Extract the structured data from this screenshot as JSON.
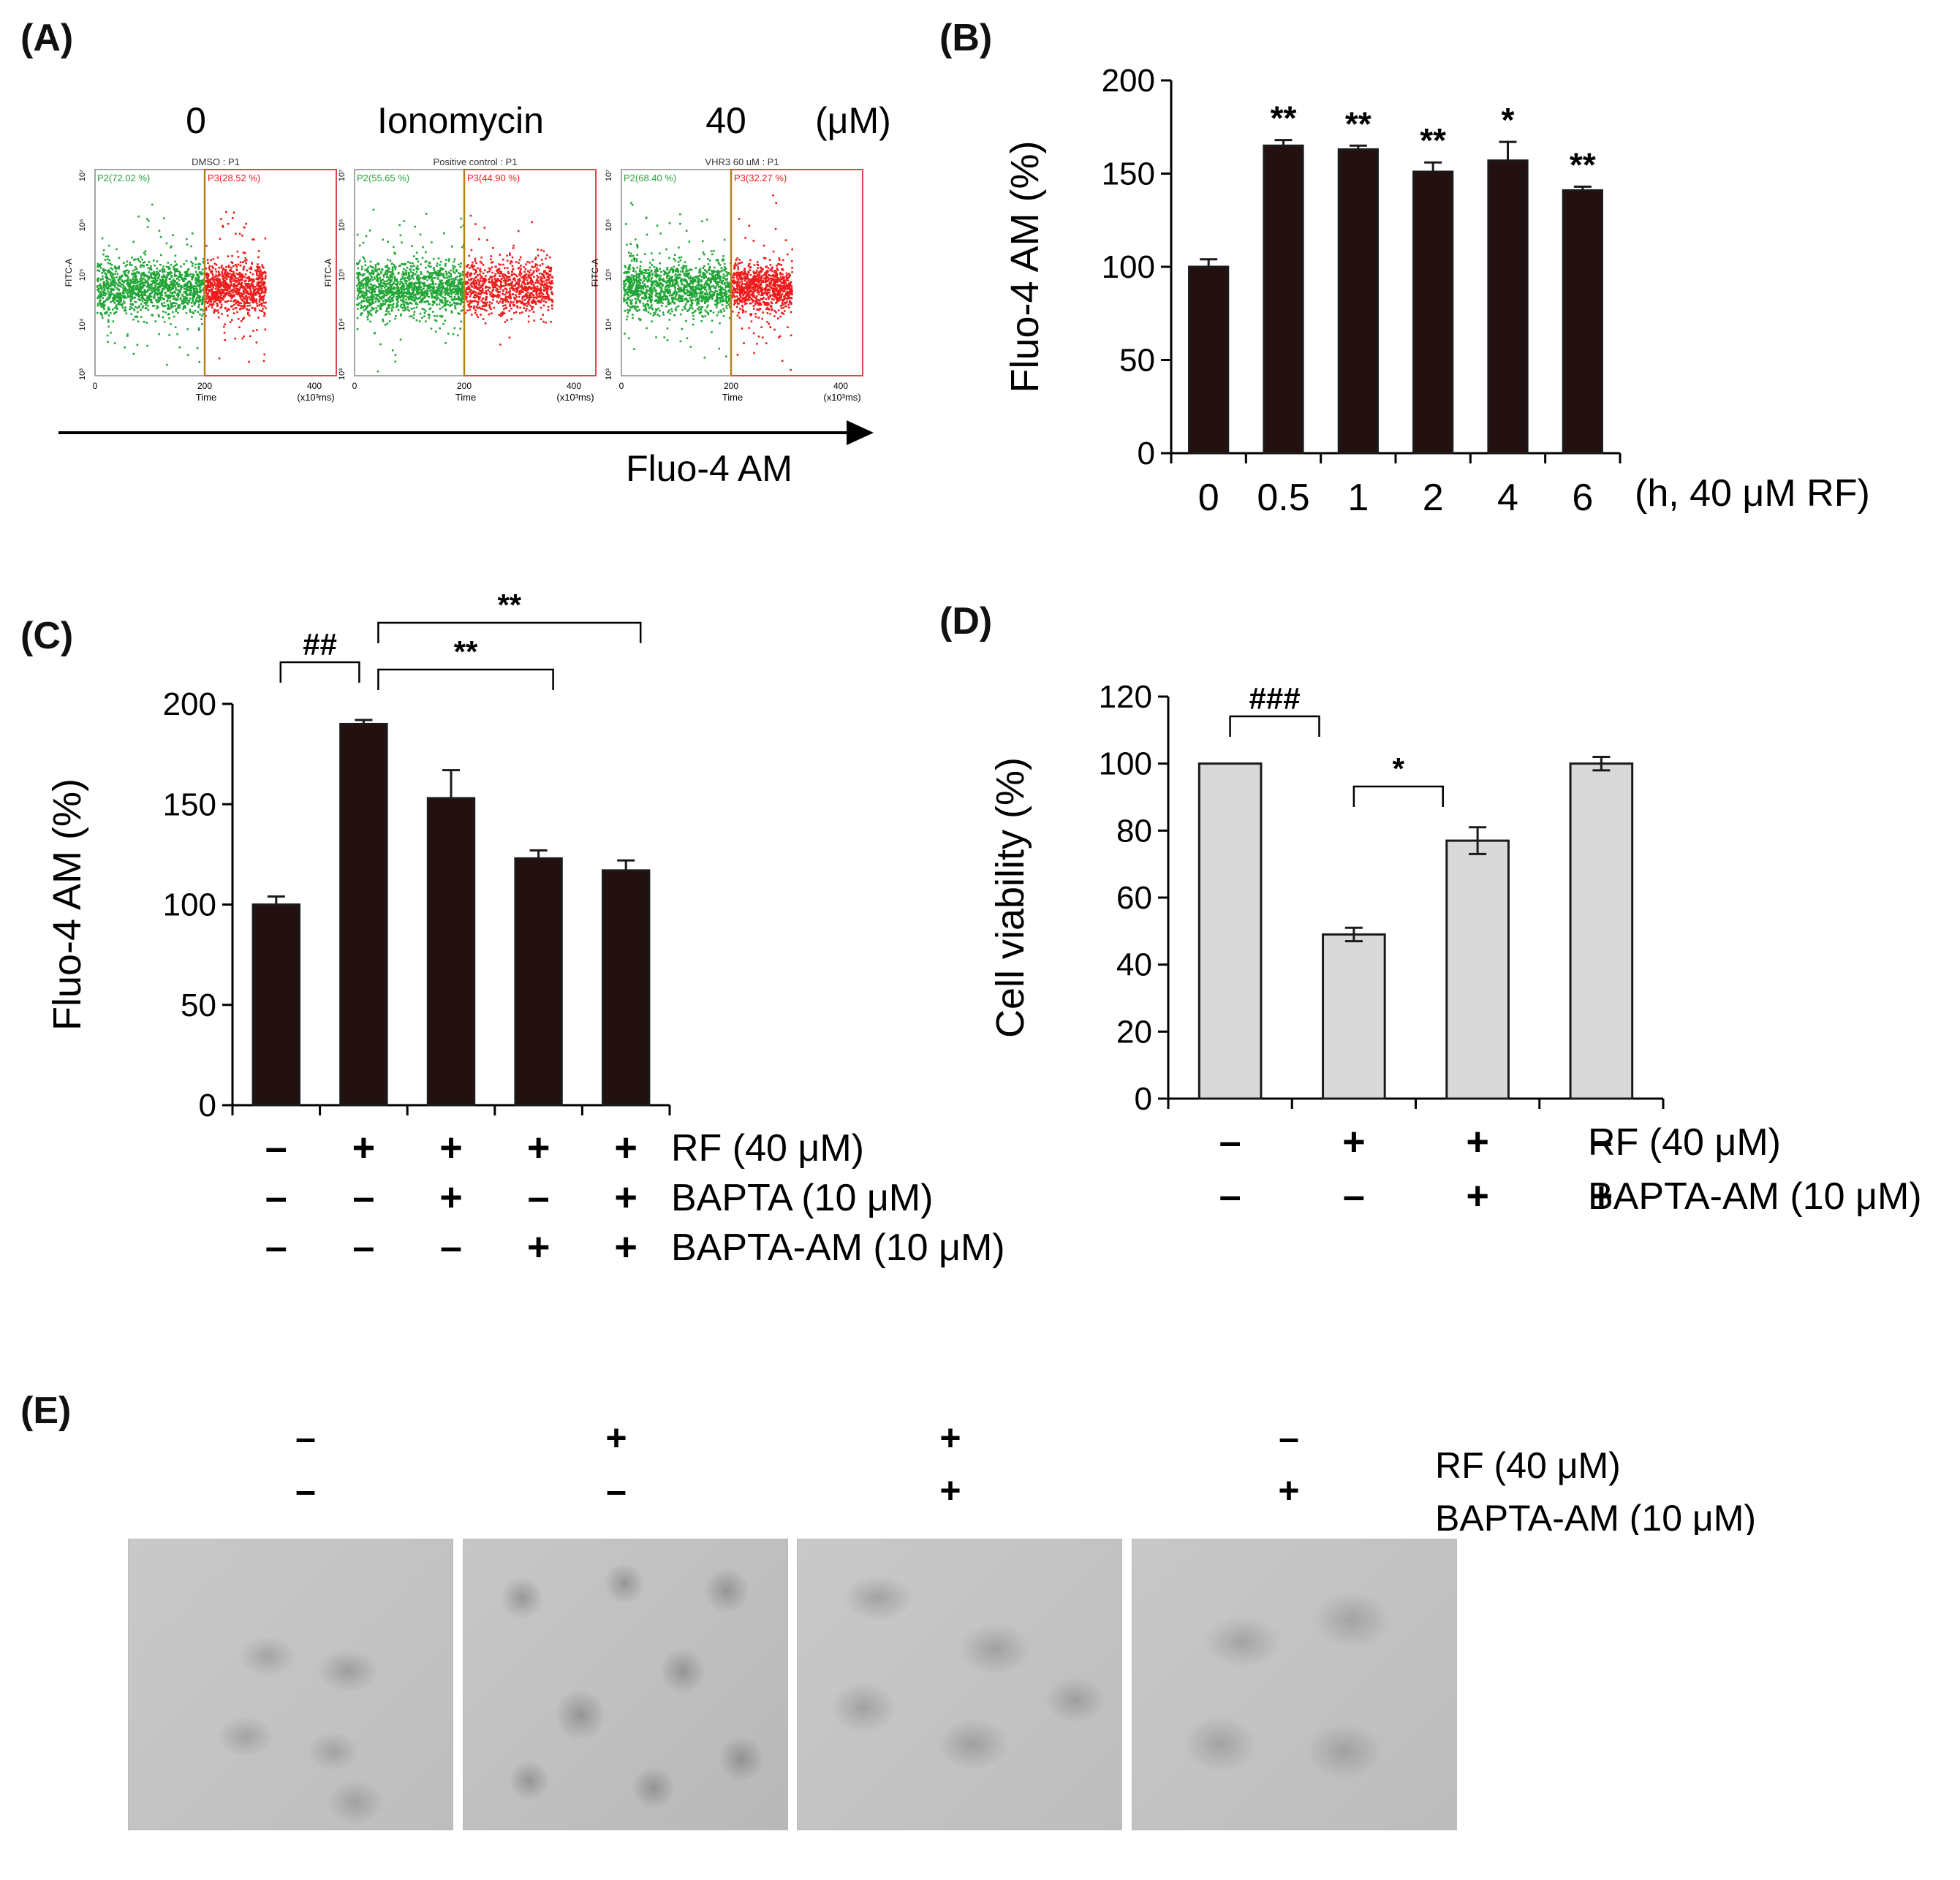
{
  "panel_labels": {
    "a": "(A)",
    "b": "(B)",
    "c": "(C)",
    "d": "(D)",
    "e": "(E)"
  },
  "colors": {
    "bar_dark": "#231010",
    "bar_light": "#d9d9d9",
    "green": "#22a537",
    "red": "#ee1b1b",
    "gate": "#b3811a",
    "box": "#d54a4a"
  },
  "panel_a": {
    "unit": "(μM)",
    "axis_caption": "Fluo-4 AM",
    "plots": [
      {
        "title": "0",
        "header": "DMSO : P1",
        "p2": "P2(72.02 %)",
        "p3": "P3(28.52 %)",
        "yaxis_label": "FITC-A",
        "xaxis_label": "Time",
        "x_unit": "(x10³ms)",
        "x_ticks": [
          "0",
          "200",
          "400"
        ],
        "y_ticks": [
          "10⁷",
          "10⁶",
          "10⁵",
          "10⁴",
          "10³"
        ],
        "gate_x": 200,
        "red_max_x": 310
      },
      {
        "title": "Ionomycin",
        "header": "Positive control : P1",
        "p2": "P2(55.65 %)",
        "p3": "P3(44.90 %)",
        "yaxis_label": "FITC-A",
        "xaxis_label": "Time",
        "x_unit": "(x10³ms)",
        "x_ticks": [
          "0",
          "200",
          "400"
        ],
        "y_ticks": [
          "10⁷",
          "10⁶",
          "10⁵",
          "10⁴",
          "10³"
        ],
        "gate_x": 200,
        "red_max_x": 360
      },
      {
        "title": "40",
        "header": "VHR3 60 uM : P1",
        "p2": "P2(68.40 %)",
        "p3": "P3(32.27 %)",
        "yaxis_label": "FITC-A",
        "xaxis_label": "Time",
        "x_unit": "(x10³ms)",
        "x_ticks": [
          "0",
          "200",
          "400"
        ],
        "y_ticks": [
          "10⁷",
          "10⁶",
          "10⁵",
          "10⁴",
          "10³"
        ],
        "gate_x": 200,
        "red_max_x": 310
      }
    ]
  },
  "chart_data": [
    {
      "id": "B",
      "type": "bar",
      "ylabel": "Fluo-4 AM (%)",
      "xlabel": "(h, 40 μM RF)",
      "ylim": [
        0,
        200
      ],
      "yticks": [
        0,
        50,
        100,
        150,
        200
      ],
      "categories": [
        "0",
        "0.5",
        "1",
        "2",
        "4",
        "6"
      ],
      "values": [
        100,
        165,
        163,
        151,
        157,
        141
      ],
      "errors": [
        4,
        3,
        2,
        5,
        10,
        2
      ],
      "significance": [
        "",
        "**",
        "**",
        "**",
        "*",
        "**"
      ]
    },
    {
      "id": "C",
      "type": "bar",
      "ylabel": "Fluo-4 AM (%)",
      "ylim": [
        0,
        200
      ],
      "yticks": [
        0,
        50,
        100,
        150,
        200
      ],
      "values": [
        100,
        190,
        153,
        123,
        117
      ],
      "errors": [
        4,
        2,
        14,
        4,
        5
      ],
      "treatments": [
        {
          "label": "RF (40 μM)",
          "signs": [
            "–",
            "+",
            "+",
            "+",
            "+"
          ]
        },
        {
          "label": "BAPTA (10 μM)",
          "signs": [
            "–",
            "–",
            "+",
            "–",
            "+"
          ]
        },
        {
          "label": "BAPTA-AM (10 μM)",
          "signs": [
            "–",
            "–",
            "–",
            "+",
            "+"
          ]
        }
      ],
      "comparisons": [
        {
          "from": 0,
          "to": 1,
          "label": "##"
        },
        {
          "from": 1,
          "to": 3,
          "label": "**"
        },
        {
          "from": 1,
          "to": 4,
          "label": "**"
        }
      ]
    },
    {
      "id": "D",
      "type": "bar",
      "ylabel": "Cell viability (%)",
      "ylim": [
        0,
        120
      ],
      "yticks": [
        0,
        20,
        40,
        60,
        80,
        100,
        120
      ],
      "values": [
        100,
        49,
        77,
        100
      ],
      "errors": [
        0,
        2,
        4,
        2
      ],
      "treatments": [
        {
          "label": "RF (40 μM)",
          "signs": [
            "–",
            "+",
            "+",
            "–"
          ]
        },
        {
          "label": "BAPTA-AM (10 μM)",
          "signs": [
            "–",
            "–",
            "+",
            "+"
          ]
        }
      ],
      "comparisons": [
        {
          "from": 0,
          "to": 1,
          "label": "###"
        },
        {
          "from": 1,
          "to": 2,
          "label": "*"
        }
      ]
    }
  ],
  "panel_e": {
    "treatments": [
      {
        "label": "RF (40 μM)",
        "signs": [
          "–",
          "+",
          "+",
          "–"
        ]
      },
      {
        "label": "BAPTA-AM (10 μM)",
        "signs": [
          "–",
          "–",
          "+",
          "+"
        ]
      }
    ]
  }
}
